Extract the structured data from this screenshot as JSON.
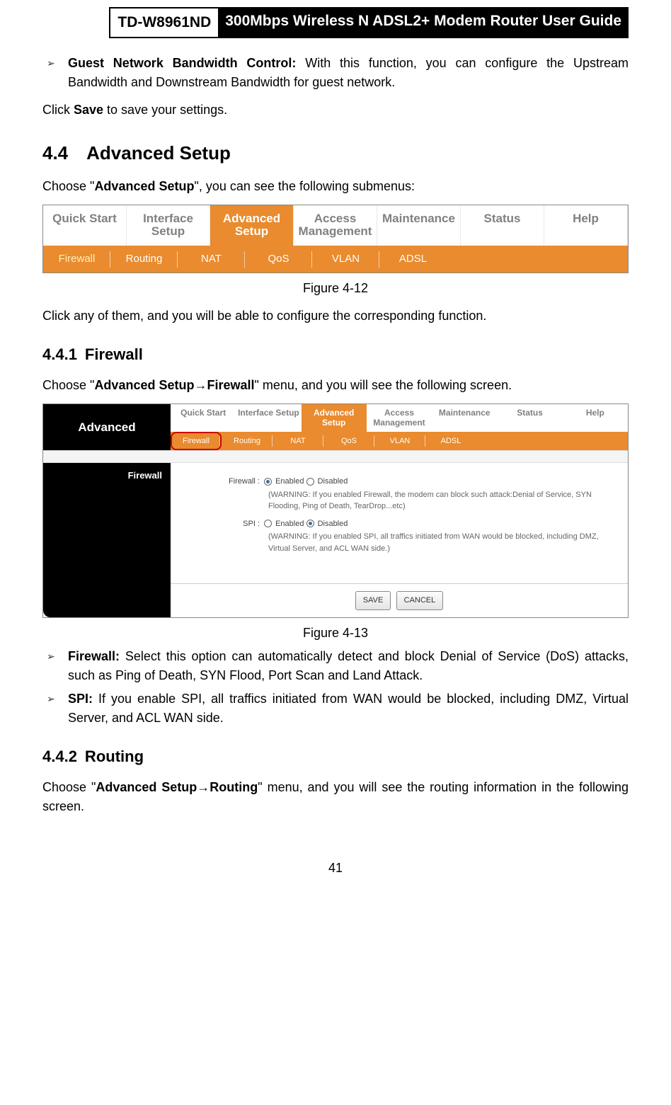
{
  "header": {
    "model": "TD-W8961ND",
    "title": "300Mbps Wireless N ADSL2+ Modem Router User Guide"
  },
  "intro_bullet": {
    "label": "Guest Network Bandwidth Control:",
    "text": " With this function, you can configure the Upstream Bandwidth and Downstream Bandwidth for guest network."
  },
  "click_save_a": "Click ",
  "click_save_b": "Save",
  "click_save_c": " to save your settings.",
  "sec44": "4.4 Advanced Setup",
  "sec44_intro_a": "Choose \"",
  "sec44_intro_b": "Advanced Setup",
  "sec44_intro_c": "\", you can see the following submenus:",
  "nav412": {
    "tabs": [
      "Quick Start",
      "Interface Setup",
      "Advanced Setup",
      "Access Management",
      "Maintenance",
      "Status",
      "Help"
    ],
    "active_index": 2,
    "subs": [
      "Firewall",
      "Routing",
      "NAT",
      "QoS",
      "VLAN",
      "ADSL"
    ],
    "sub_selected_index": 0
  },
  "fig412_caption": "Figure 4-12",
  "after412": "Click any of them, and you will be able to configure the corresponding function.",
  "sec441": "4.4.1 Firewall",
  "sec441_intro_a": "Choose \"",
  "sec441_intro_b": "Advanced Setup→Firewall",
  "sec441_intro_c": "\" menu, and you will see the following screen.",
  "fig413": {
    "side_title": "Advanced",
    "tabs": [
      "Quick Start",
      "Interface Setup",
      "Advanced Setup",
      "Access Management",
      "Maintenance",
      "Status",
      "Help"
    ],
    "active_index": 2,
    "subs": [
      "Firewall",
      "Routing",
      "NAT",
      "QoS",
      "VLAN",
      "ADSL"
    ],
    "sub_selected_index": 0,
    "section_label": "Firewall",
    "rows": {
      "firewall_label": "Firewall :",
      "firewall_enabled": "Enabled",
      "firewall_disabled": "Disabled",
      "firewall_warn": "(WARNING: If you enabled Firewall, the modem can block such attack:Denial of Service, SYN Flooding, Ping of Death, TearDrop...etc)",
      "spi_label": "SPI :",
      "spi_enabled": "Enabled",
      "spi_disabled": "Disabled",
      "spi_warn": "(WARNING: If you enabled SPI, all traffics initiated from WAN would be blocked, including DMZ, Virtual Server, and ACL WAN side.)"
    },
    "buttons": {
      "save": "SAVE",
      "cancel": "CANCEL"
    }
  },
  "fig413_caption": "Figure 4-13",
  "bullet_firewall": {
    "label": "Firewall:",
    "text": " Select this option can automatically detect and block Denial of Service (DoS) attacks, such as Ping of Death, SYN Flood, Port Scan and Land Attack."
  },
  "bullet_spi": {
    "label": "SPI:",
    "text": " If you enable SPI, all traffics initiated from WAN would be blocked, including DMZ, Virtual Server, and ACL WAN side."
  },
  "sec442": "4.4.2 Routing",
  "sec442_intro_a": "Choose \"",
  "sec442_intro_b": "Advanced Setup→Routing",
  "sec442_intro_c": "\" menu, and you will see the routing information in the following screen.",
  "page_number": "41",
  "colors": {
    "orange": "#e98b2e",
    "gray_text": "#808080",
    "highlight_border": "#cc0000"
  }
}
